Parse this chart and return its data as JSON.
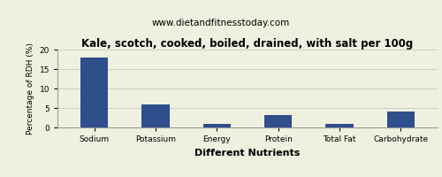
{
  "title": "Kale, scotch, cooked, boiled, drained, with salt per 100g",
  "subtitle": "www.dietandfitnesstoday.com",
  "xlabel": "Different Nutrients",
  "ylabel": "Percentage of RDH (%)",
  "categories": [
    "Sodium",
    "Potassium",
    "Energy",
    "Protein",
    "Total Fat",
    "Carbohydrate"
  ],
  "values": [
    18,
    6,
    1,
    3.2,
    1,
    4
  ],
  "bar_color": "#2e4e8c",
  "ylim": [
    0,
    20
  ],
  "yticks": [
    0,
    5,
    10,
    15,
    20
  ],
  "background_color": "#f0f0e0",
  "title_fontsize": 8.5,
  "subtitle_fontsize": 7.5,
  "xlabel_fontsize": 8,
  "ylabel_fontsize": 6.5,
  "tick_fontsize": 6.5,
  "grid_color": "#cccccc"
}
